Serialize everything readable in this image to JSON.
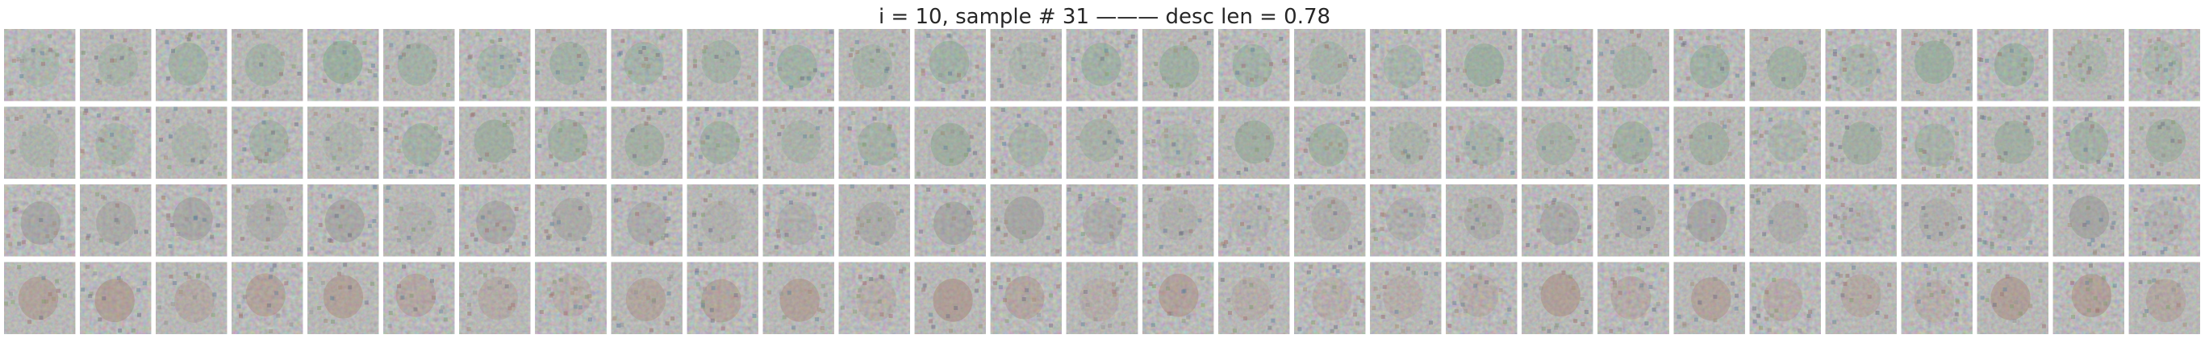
{
  "figure": {
    "title": "i = 10, sample # 31 ——— desc len = 0.78"
  },
  "grid": {
    "rows": 4,
    "cols": 29,
    "background_color": "#808080",
    "row_tints": [
      {
        "description": "rows 1-2: greenish/teal noise blobs",
        "accent": "#6f9a7c"
      },
      {
        "description": "row 2",
        "accent": "#7c9a80"
      },
      {
        "description": "row 3: flat grey noise",
        "accent": "#8a8a86"
      },
      {
        "description": "row 4: reddish/orange noise blobs",
        "accent": "#a07868"
      }
    ]
  }
}
